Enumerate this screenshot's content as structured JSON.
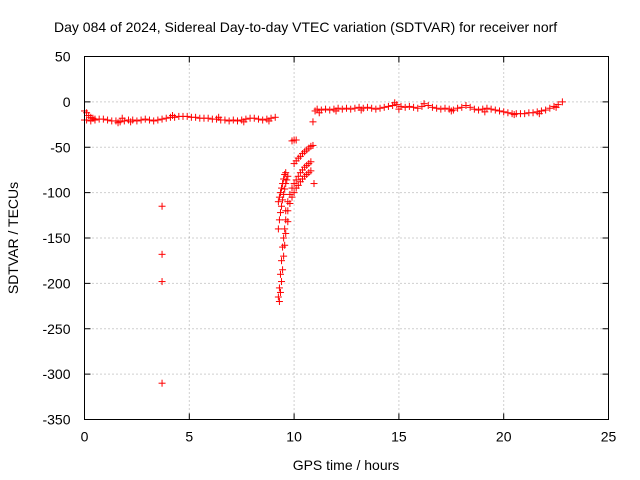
{
  "chart_data": {
    "type": "scatter",
    "title": "Day 084 of 2024, Sidereal Day-to-day VTEC variation (SDTVAR) for receiver norf",
    "xlabel": "GPS time / hours",
    "ylabel": "SDTVAR / TECUs",
    "xlim": [
      0,
      25
    ],
    "ylim": [
      -350,
      50
    ],
    "xticks": [
      0,
      5,
      10,
      15,
      20,
      25
    ],
    "yticks": [
      -350,
      -300,
      -250,
      -200,
      -150,
      -100,
      -50,
      0,
      50
    ],
    "grid": true,
    "marker": "+",
    "color": "#ff0000",
    "isolated_points": [
      {
        "x": 3.7,
        "y": -115
      },
      {
        "x": 3.7,
        "y": -168
      },
      {
        "x": 3.7,
        "y": -198
      },
      {
        "x": 3.7,
        "y": -310
      }
    ],
    "series": [
      {
        "segment": "early-band",
        "points": [
          [
            0.0,
            -10
          ],
          [
            0.1,
            -12
          ],
          [
            0.2,
            -15
          ],
          [
            0.3,
            -17
          ],
          [
            0.4,
            -18
          ],
          [
            0.5,
            -19
          ],
          [
            0.0,
            -20
          ],
          [
            0.1,
            -20
          ],
          [
            0.3,
            -21
          ],
          [
            0.5,
            -20
          ],
          [
            0.7,
            -19
          ],
          [
            0.9,
            -19
          ],
          [
            1.1,
            -20
          ],
          [
            1.3,
            -21
          ],
          [
            1.5,
            -21
          ],
          [
            1.6,
            -23
          ],
          [
            1.7,
            -22
          ],
          [
            1.9,
            -21
          ],
          [
            2.1,
            -20
          ],
          [
            2.3,
            -20
          ],
          [
            2.5,
            -21
          ],
          [
            2.7,
            -20
          ],
          [
            2.9,
            -19
          ],
          [
            3.1,
            -20
          ],
          [
            3.3,
            -21
          ],
          [
            3.5,
            -20
          ],
          [
            3.7,
            -19
          ],
          [
            3.9,
            -18
          ],
          [
            4.1,
            -17
          ],
          [
            4.3,
            -17
          ],
          [
            4.5,
            -16
          ],
          [
            4.7,
            -16
          ],
          [
            4.9,
            -16
          ],
          [
            5.1,
            -17
          ],
          [
            5.3,
            -17
          ],
          [
            5.5,
            -18
          ],
          [
            5.7,
            -18
          ],
          [
            5.9,
            -18
          ],
          [
            6.1,
            -19
          ],
          [
            6.3,
            -19
          ],
          [
            6.5,
            -20
          ],
          [
            6.7,
            -20
          ],
          [
            6.9,
            -21
          ],
          [
            7.1,
            -20
          ],
          [
            7.3,
            -21
          ],
          [
            7.5,
            -20
          ],
          [
            7.7,
            -19
          ],
          [
            7.9,
            -18
          ],
          [
            8.1,
            -18
          ],
          [
            8.3,
            -19
          ],
          [
            8.5,
            -20
          ],
          [
            8.7,
            -19
          ],
          [
            8.9,
            -18
          ],
          [
            9.1,
            -17
          ],
          [
            1.8,
            -18
          ],
          [
            2.2,
            -22
          ],
          [
            4.2,
            -15
          ],
          [
            6.4,
            -17
          ],
          [
            7.6,
            -22
          ],
          [
            8.8,
            -21
          ]
        ]
      },
      {
        "segment": "recovery-curves",
        "points": [
          [
            9.25,
            -215
          ],
          [
            9.3,
            -205
          ],
          [
            9.35,
            -190
          ],
          [
            9.4,
            -175
          ],
          [
            9.45,
            -160
          ],
          [
            9.5,
            -150
          ],
          [
            9.55,
            -140
          ],
          [
            9.6,
            -130
          ],
          [
            9.7,
            -120
          ],
          [
            9.8,
            -112
          ],
          [
            9.9,
            -105
          ],
          [
            10.0,
            -100
          ],
          [
            10.1,
            -95
          ],
          [
            10.2,
            -92
          ],
          [
            10.3,
            -88
          ],
          [
            10.4,
            -85
          ],
          [
            10.5,
            -82
          ],
          [
            10.6,
            -80
          ],
          [
            10.7,
            -78
          ],
          [
            10.8,
            -76
          ],
          [
            9.25,
            -140
          ],
          [
            9.3,
            -130
          ],
          [
            9.35,
            -122
          ],
          [
            9.4,
            -115
          ],
          [
            9.45,
            -108
          ],
          [
            9.5,
            -102
          ],
          [
            9.55,
            -96
          ],
          [
            9.6,
            -90
          ],
          [
            9.65,
            -86
          ],
          [
            9.7,
            -82
          ],
          [
            9.25,
            -110
          ],
          [
            9.3,
            -105
          ],
          [
            9.35,
            -100
          ],
          [
            9.4,
            -95
          ],
          [
            9.45,
            -90
          ],
          [
            9.5,
            -85
          ],
          [
            9.55,
            -80
          ],
          [
            9.6,
            -78
          ],
          [
            9.6,
            -120
          ],
          [
            9.7,
            -110
          ],
          [
            9.8,
            -102
          ],
          [
            9.9,
            -95
          ],
          [
            10.0,
            -90
          ],
          [
            10.1,
            -86
          ],
          [
            10.2,
            -82
          ],
          [
            10.3,
            -78
          ],
          [
            10.4,
            -75
          ],
          [
            10.5,
            -72
          ],
          [
            10.6,
            -70
          ],
          [
            10.7,
            -68
          ],
          [
            10.8,
            -66
          ],
          [
            10.0,
            -68
          ],
          [
            10.1,
            -65
          ],
          [
            10.2,
            -62
          ],
          [
            10.3,
            -60
          ],
          [
            10.4,
            -57
          ],
          [
            10.5,
            -55
          ],
          [
            10.6,
            -53
          ],
          [
            10.7,
            -51
          ],
          [
            10.8,
            -49
          ],
          [
            10.9,
            -48
          ],
          [
            9.9,
            -43
          ],
          [
            10.0,
            -42
          ],
          [
            10.1,
            -42
          ],
          [
            10.9,
            -22
          ],
          [
            10.95,
            -90
          ],
          [
            9.3,
            -220
          ],
          [
            9.35,
            -210
          ],
          [
            9.4,
            -198
          ],
          [
            9.45,
            -185
          ],
          [
            9.5,
            -170
          ],
          [
            9.55,
            -158
          ],
          [
            9.6,
            -145
          ],
          [
            9.7,
            -132
          ]
        ]
      },
      {
        "segment": "late-band",
        "points": [
          [
            11.0,
            -10
          ],
          [
            11.1,
            -8
          ],
          [
            11.3,
            -9
          ],
          [
            11.5,
            -8
          ],
          [
            11.7,
            -9
          ],
          [
            11.9,
            -8
          ],
          [
            12.1,
            -7
          ],
          [
            12.3,
            -8
          ],
          [
            12.5,
            -7
          ],
          [
            12.7,
            -8
          ],
          [
            12.9,
            -7
          ],
          [
            13.1,
            -6
          ],
          [
            13.3,
            -7
          ],
          [
            13.5,
            -6
          ],
          [
            13.7,
            -7
          ],
          [
            13.9,
            -8
          ],
          [
            14.1,
            -7
          ],
          [
            14.3,
            -6
          ],
          [
            14.5,
            -5
          ],
          [
            14.7,
            -4
          ],
          [
            14.8,
            -1
          ],
          [
            14.9,
            -3
          ],
          [
            15.1,
            -5
          ],
          [
            15.3,
            -6
          ],
          [
            15.5,
            -5
          ],
          [
            15.7,
            -6
          ],
          [
            15.9,
            -7
          ],
          [
            16.1,
            -5
          ],
          [
            16.2,
            -2
          ],
          [
            16.4,
            -4
          ],
          [
            16.6,
            -6
          ],
          [
            16.8,
            -7
          ],
          [
            17.0,
            -8
          ],
          [
            17.2,
            -7
          ],
          [
            17.4,
            -8
          ],
          [
            17.6,
            -9
          ],
          [
            17.8,
            -7
          ],
          [
            18.0,
            -6
          ],
          [
            18.2,
            -4
          ],
          [
            18.4,
            -6
          ],
          [
            18.6,
            -8
          ],
          [
            18.8,
            -9
          ],
          [
            19.0,
            -8
          ],
          [
            19.2,
            -7
          ],
          [
            19.4,
            -8
          ],
          [
            19.6,
            -9
          ],
          [
            19.8,
            -10
          ],
          [
            20.0,
            -11
          ],
          [
            20.2,
            -12
          ],
          [
            20.4,
            -13
          ],
          [
            20.6,
            -13
          ],
          [
            20.8,
            -13
          ],
          [
            21.0,
            -13
          ],
          [
            21.2,
            -12
          ],
          [
            21.4,
            -12
          ],
          [
            21.6,
            -11
          ],
          [
            21.8,
            -10
          ],
          [
            22.0,
            -9
          ],
          [
            22.2,
            -7
          ],
          [
            22.4,
            -5
          ],
          [
            22.6,
            -3
          ],
          [
            22.8,
            0
          ],
          [
            11.2,
            -12
          ],
          [
            12.0,
            -10
          ],
          [
            13.2,
            -9
          ],
          [
            15.0,
            -8
          ],
          [
            17.5,
            -10
          ],
          [
            19.1,
            -11
          ],
          [
            20.5,
            -14
          ],
          [
            21.7,
            -13
          ],
          [
            22.5,
            -6
          ]
        ]
      }
    ]
  }
}
